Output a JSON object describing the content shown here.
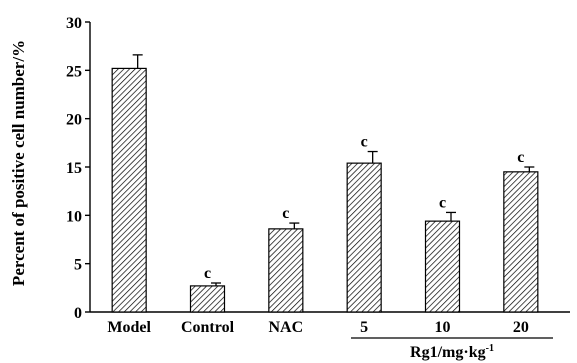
{
  "chart_data": {
    "type": "bar",
    "title": "",
    "ylabel": "Percent of positive cell number/%",
    "xlabel": "",
    "group_label": "Rg1/mg·kg",
    "group_label_superscript": "-1",
    "categories": [
      "Model",
      "Control",
      "NAC",
      "5",
      "10",
      "20"
    ],
    "values": [
      25.2,
      2.7,
      8.6,
      15.4,
      9.4,
      14.5
    ],
    "errors": [
      1.4,
      0.3,
      0.6,
      1.2,
      0.9,
      0.5
    ],
    "annotations": [
      "",
      "c",
      "c",
      "c",
      "c",
      "c"
    ],
    "ylim": [
      0,
      30
    ],
    "yticks": [
      0,
      5,
      10,
      15,
      20,
      25,
      30
    ],
    "grouped_categories": [
      "5",
      "10",
      "20"
    ],
    "grid": false,
    "bar_fill": "hatched-diagonal",
    "colors": {
      "bar_stroke": "#000000",
      "hatch": "#000000",
      "background": "#ffffff"
    }
  }
}
